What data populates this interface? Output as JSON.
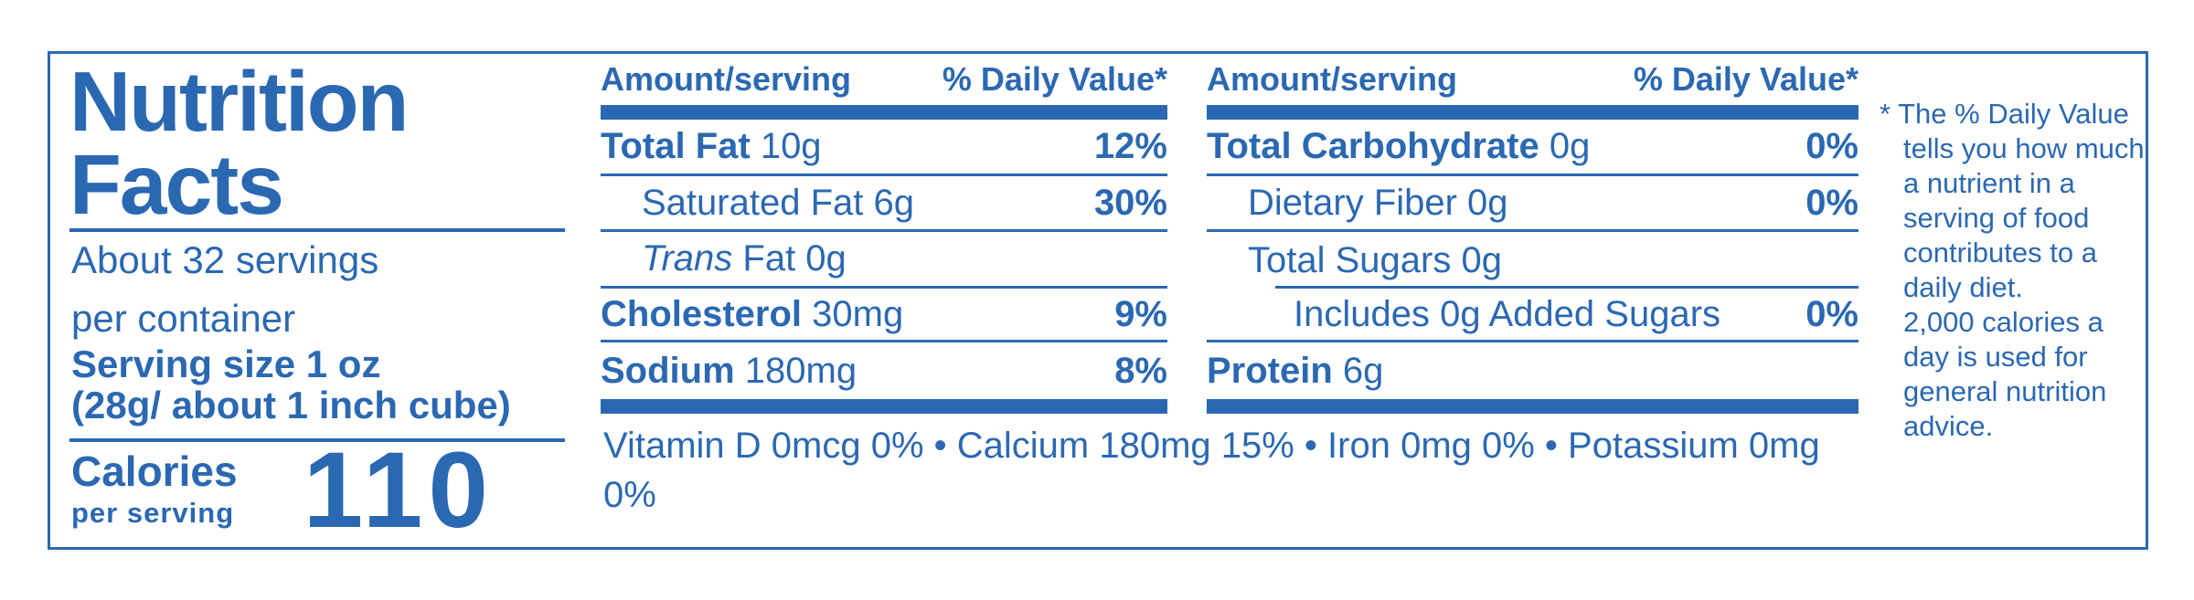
{
  "colors": {
    "accent": "#2b68b2",
    "background": "#ffffff"
  },
  "label": {
    "title_line1": "Nutrition",
    "title_line2": "Facts",
    "servings_line1": "About 32 servings",
    "servings_line2": "per container",
    "serving_size_line1": "Serving size 1 oz",
    "serving_size_line2": "(28g/ about 1 inch cube)",
    "calories": {
      "label": "Calories",
      "sublabel": "per serving",
      "value": "110"
    }
  },
  "columns": [
    {
      "header": {
        "amount": "Amount/serving",
        "daily_value": "% Daily Value*"
      },
      "rows": [
        {
          "bold": "Total Fat",
          "plain": " 10g",
          "dv": "12%"
        },
        {
          "plain": "Saturated Fat 6g",
          "dv": "30%"
        },
        {
          "italic": "Trans",
          "plain": " Fat 0g",
          "dv": ""
        },
        {
          "bold": "Cholesterol",
          "plain": " 30mg",
          "dv": "9%"
        },
        {
          "bold": "Sodium",
          "plain": " 180mg",
          "dv": "8%"
        }
      ]
    },
    {
      "header": {
        "amount": "Amount/serving",
        "daily_value": "% Daily Value*"
      },
      "rows": [
        {
          "bold": "Total Carbohydrate",
          "plain": " 0g",
          "dv": "0%"
        },
        {
          "plain": "Dietary Fiber 0g",
          "dv": "0%"
        },
        {
          "plain": "Total Sugars 0g",
          "dv": ""
        },
        {
          "plain": "Includes 0g Added Sugars",
          "dv": "0%"
        },
        {
          "bold": "Protein",
          "plain": " 6g",
          "dv": ""
        }
      ]
    }
  ],
  "micronutrients": "Vitamin D 0mcg 0% • Calcium 180mg 15% • Iron 0mg 0% • Potassium 0mg 0%",
  "footnote_lines": [
    "* The % Daily Value",
    "tells you how much",
    "a nutrient in a",
    "serving of food",
    "contributes to a",
    "daily diet.",
    "2,000 calories a",
    "day is used for",
    "general nutrition",
    "advice."
  ]
}
